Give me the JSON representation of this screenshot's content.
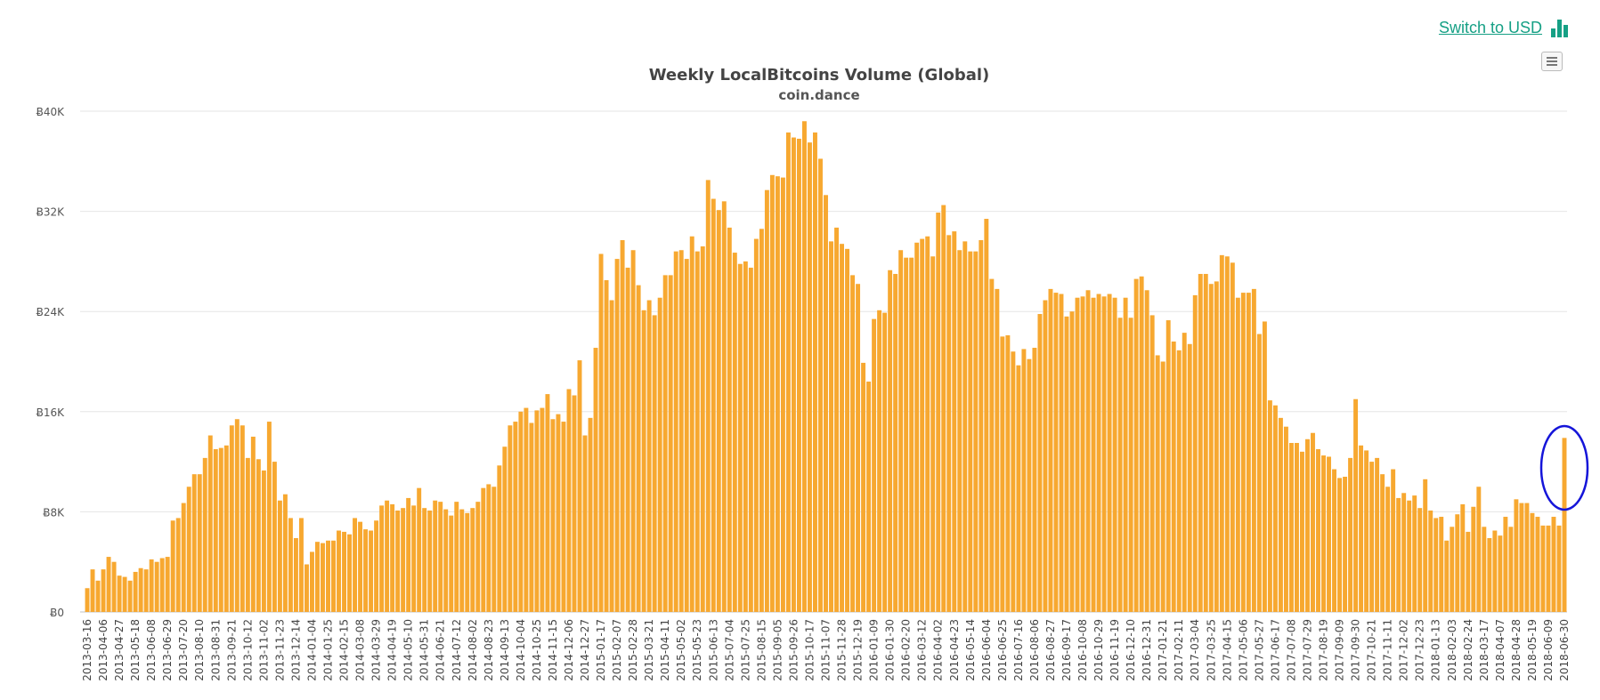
{
  "switch_currency": {
    "label": "Switch to USD",
    "icon": "bar-chart-icon"
  },
  "menu": {
    "icon": "hamburger-menu-icon"
  },
  "colors": {
    "bar": "#F7A830",
    "accent": "#16a085",
    "gridline": "#e6e6e6",
    "annotation": "#1515d9"
  },
  "chart_data": {
    "type": "bar",
    "title": "Weekly LocalBitcoins Volume (Global)",
    "subtitle": "coin.dance",
    "xlabel": "",
    "ylabel": "",
    "ylim": [
      0,
      40000
    ],
    "yticks": [
      "Ƀ0",
      "Ƀ8K",
      "Ƀ16K",
      "Ƀ24K",
      "Ƀ32K",
      "Ƀ40K"
    ],
    "ytick_values": [
      0,
      8000,
      16000,
      24000,
      32000,
      40000
    ],
    "grid": true,
    "legend": "none",
    "annotation": "hand-drawn blue circle around the last bar",
    "x_start_date": "2013-03-16",
    "x_label_every_weeks": 3,
    "values": [
      1900,
      3400,
      2500,
      3400,
      4400,
      4000,
      2900,
      2800,
      2500,
      3200,
      3500,
      3400,
      4200,
      4000,
      4300,
      4400,
      7300,
      7500,
      8700,
      10000,
      11000,
      11000,
      12300,
      14100,
      13000,
      13100,
      13300,
      14900,
      15400,
      14900,
      12300,
      14000,
      12200,
      11300,
      15200,
      12000,
      8900,
      9400,
      7500,
      5900,
      7500,
      3800,
      4800,
      5600,
      5500,
      5700,
      5700,
      6500,
      6400,
      6200,
      7500,
      7200,
      6600,
      6500,
      7300,
      8500,
      8900,
      8600,
      8100,
      8300,
      9100,
      8500,
      9900,
      8300,
      8100,
      8900,
      8800,
      8200,
      7700,
      8800,
      8200,
      7900,
      8300,
      8800,
      9900,
      10200,
      10000,
      11700,
      13200,
      14900,
      15200,
      16000,
      16300,
      15100,
      16100,
      16300,
      17400,
      15400,
      15800,
      15200,
      17800,
      17300,
      20100,
      14100,
      15500,
      21100,
      28600,
      26500,
      24900,
      28200,
      29700,
      27500,
      28900,
      26100,
      24100,
      24900,
      23700,
      25100,
      26900,
      26900,
      28800,
      28900,
      28200,
      30000,
      28800,
      29200,
      34500,
      33000,
      32100,
      32800,
      30700,
      28700,
      27800,
      28000,
      27500,
      29800,
      30600,
      33700,
      34900,
      34800,
      34700,
      38300,
      37900,
      37800,
      39200,
      37500,
      38300,
      36200,
      33300,
      29600,
      30700,
      29400,
      29000,
      26900,
      26200,
      19900,
      18400,
      23400,
      24100,
      23900,
      27300,
      27000,
      28900,
      28300,
      28300,
      29500,
      29800,
      30000,
      28400,
      31900,
      32500,
      30100,
      30400,
      28900,
      29600,
      28800,
      28800,
      29700,
      31400,
      26600,
      25800,
      22000,
      22100,
      20800,
      19700,
      21000,
      20200,
      21100,
      23800,
      24900,
      25800,
      25500,
      25400,
      23600,
      24000,
      25100,
      25200,
      25700,
      25100,
      25400,
      25200,
      25400,
      25100,
      23500,
      25100,
      23500,
      26600,
      26800,
      25700,
      23700,
      20500,
      20000,
      23300,
      21600,
      20900,
      22300,
      21400,
      25300,
      27000,
      27000,
      26200,
      26400,
      28500,
      28400,
      27900,
      25100,
      25500,
      25500,
      25800,
      22200,
      23200,
      16900,
      16500,
      15500,
      14800,
      13500,
      13500,
      12800,
      13800,
      14300,
      13000,
      12500,
      12400,
      11400,
      10700,
      10800,
      12300,
      17000,
      13300,
      12900,
      12000,
      12300,
      11000,
      10000,
      11400,
      9100,
      9500,
      8900,
      9300,
      8300,
      10600,
      8100,
      7500,
      7600,
      5700,
      6800,
      7800,
      8600,
      6400,
      8400,
      10000,
      6800,
      5900,
      6500,
      6100,
      7600,
      6800,
      9000,
      8700,
      8700,
      7900,
      7600,
      6900,
      6900,
      7600,
      6900,
      13900
    ]
  }
}
